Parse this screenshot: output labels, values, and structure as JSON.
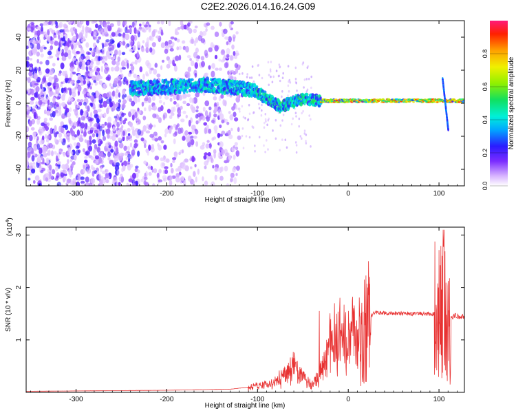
{
  "title": "C2E2.2026.014.16.24.G09",
  "colors": {
    "spectral_point": "#7722ee",
    "snr_line": "#e83232",
    "frame": "#000000"
  },
  "chart_data": [
    {
      "type": "heatmap",
      "name": "spectrogram",
      "xlabel": "Height of straight line (km)",
      "ylabel": "Frequency (Hz)",
      "xlim": [
        -355,
        128
      ],
      "ylim": [
        -50,
        50
      ],
      "xticks": [
        -300,
        -200,
        -100,
        0,
        100
      ],
      "xtick_labels": [
        "-300",
        "-200",
        "-100",
        "0",
        "100"
      ],
      "yticks": [
        -40,
        -20,
        0,
        20,
        40
      ],
      "ytick_labels": [
        "-40",
        "-20",
        "0",
        "20",
        "40"
      ],
      "colorbar": {
        "label": "Normalized spectral amplitude",
        "range": [
          0,
          1
        ],
        "ticks": [
          0,
          0.2,
          0.4,
          0.6,
          0.8
        ],
        "tick_labels": [
          "0.0",
          "0.2",
          "0.4",
          "0.6",
          "0.8"
        ],
        "colormap": "rainbow"
      },
      "features": {
        "broadband_noise_x_range": [
          -355,
          -120
        ],
        "ridge": [
          {
            "x": -235,
            "y": 9
          },
          {
            "x": -150,
            "y": 11
          },
          {
            "x": -105,
            "y": 8
          },
          {
            "x": -75,
            "y": -2
          },
          {
            "x": -50,
            "y": 3
          },
          {
            "x": -30,
            "y": 1.5
          },
          {
            "x": 128,
            "y": 1.5
          }
        ],
        "spike_x": 107
      }
    },
    {
      "type": "line",
      "name": "snr",
      "xlabel": "Height of straight line (km)",
      "ylabel": "SNR (10 * v/v)",
      "multiplier_label": "(x10",
      "multiplier_exponent": "4",
      "multiplier_close": ")",
      "xlim": [
        -355,
        128
      ],
      "ylim": [
        0,
        3.15
      ],
      "xticks": [
        -300,
        -200,
        -100,
        0,
        100
      ],
      "xtick_labels": [
        "-300",
        "-200",
        "-100",
        "0",
        "100"
      ],
      "yticks": [
        1,
        2,
        3
      ],
      "ytick_labels": [
        "1",
        "2",
        "3"
      ],
      "envelope": [
        {
          "x": -355,
          "y": 0.02
        },
        {
          "x": -200,
          "y": 0.04
        },
        {
          "x": -130,
          "y": 0.06
        },
        {
          "x": -100,
          "y": 0.12
        },
        {
          "x": -80,
          "y": 0.2
        },
        {
          "x": -60,
          "y": 0.45
        },
        {
          "x": -50,
          "y": 0.3
        },
        {
          "x": -40,
          "y": 0.15
        },
        {
          "x": -30,
          "y": 0.4
        },
        {
          "x": -20,
          "y": 0.9
        },
        {
          "x": -10,
          "y": 1.0
        },
        {
          "x": 0,
          "y": 1.05
        },
        {
          "x": 10,
          "y": 1.15
        },
        {
          "x": 20,
          "y": 1.4
        },
        {
          "x": 30,
          "y": 1.52
        },
        {
          "x": 60,
          "y": 1.5
        },
        {
          "x": 95,
          "y": 1.5
        },
        {
          "x": 105,
          "y": 1.6
        },
        {
          "x": 112,
          "y": 1.45
        },
        {
          "x": 128,
          "y": 1.45
        }
      ]
    }
  ]
}
